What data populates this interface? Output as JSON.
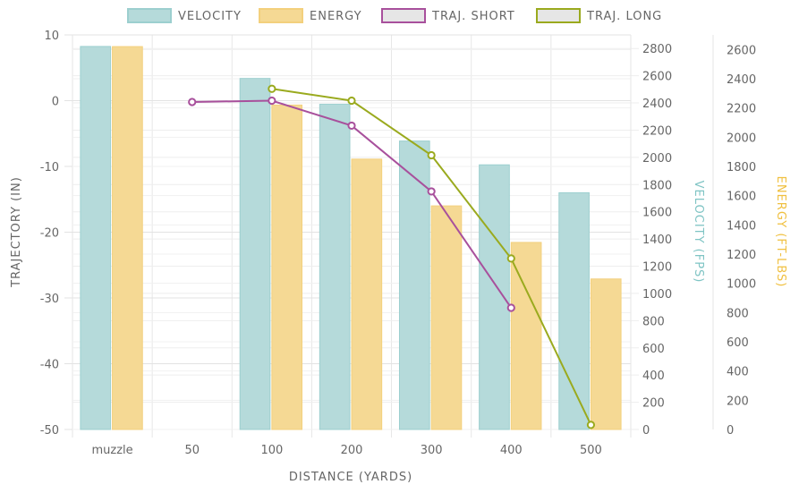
{
  "chart_data": {
    "type": "bar",
    "categories": [
      "muzzle",
      "50",
      "100",
      "200",
      "300",
      "400",
      "500"
    ],
    "xlabel": "DISTANCE (YARDS)",
    "legend": {
      "placement": "top"
    },
    "grid": true,
    "axes": {
      "trajectory": {
        "label": "TRAJECTORY (IN)",
        "range": [
          -50,
          10
        ],
        "ticks": [
          "10",
          "0",
          "-10",
          "-20",
          "-30",
          "-40",
          "-50"
        ]
      },
      "velocity": {
        "label": "VELOCITY (FPS)",
        "range": [
          0,
          2900
        ],
        "ticks": [
          "0",
          "200",
          "400",
          "600",
          "800",
          "1000",
          "1200",
          "1400",
          "1600",
          "1800",
          "2000",
          "2200",
          "2400",
          "2600",
          "2800"
        ],
        "color": "#7fc4c4"
      },
      "energy": {
        "label": "ENERGY (FT-LBS)",
        "range": [
          0,
          2700
        ],
        "ticks": [
          "0",
          "200",
          "400",
          "600",
          "800",
          "1000",
          "1200",
          "1400",
          "1600",
          "1800",
          "2000",
          "2200",
          "2400",
          "2600"
        ],
        "color": "#f0c040"
      }
    },
    "series": [
      {
        "name": "VELOCITY",
        "kind": "bar",
        "axis": "velocity",
        "color": "#b5dada",
        "border": "#9ccfcf",
        "values": [
          2815,
          null,
          2580,
          2390,
          2120,
          1945,
          1740
        ]
      },
      {
        "name": "ENERGY",
        "kind": "bar",
        "axis": "energy",
        "color": "#f5d994",
        "border": "#f3d07d",
        "values": [
          2620,
          null,
          2220,
          1850,
          1530,
          1280,
          1030
        ]
      },
      {
        "name": "TRAJ. SHORT",
        "kind": "line",
        "axis": "trajectory",
        "color": "#a8509c",
        "values": [
          null,
          -0.2,
          0.0,
          -3.8,
          -13.8,
          -31.5,
          null
        ]
      },
      {
        "name": "TRAJ. LONG",
        "kind": "line",
        "axis": "trajectory",
        "color": "#9aaa1e",
        "values": [
          null,
          null,
          1.8,
          0.0,
          -8.3,
          -24.0,
          -49.3
        ]
      }
    ]
  }
}
